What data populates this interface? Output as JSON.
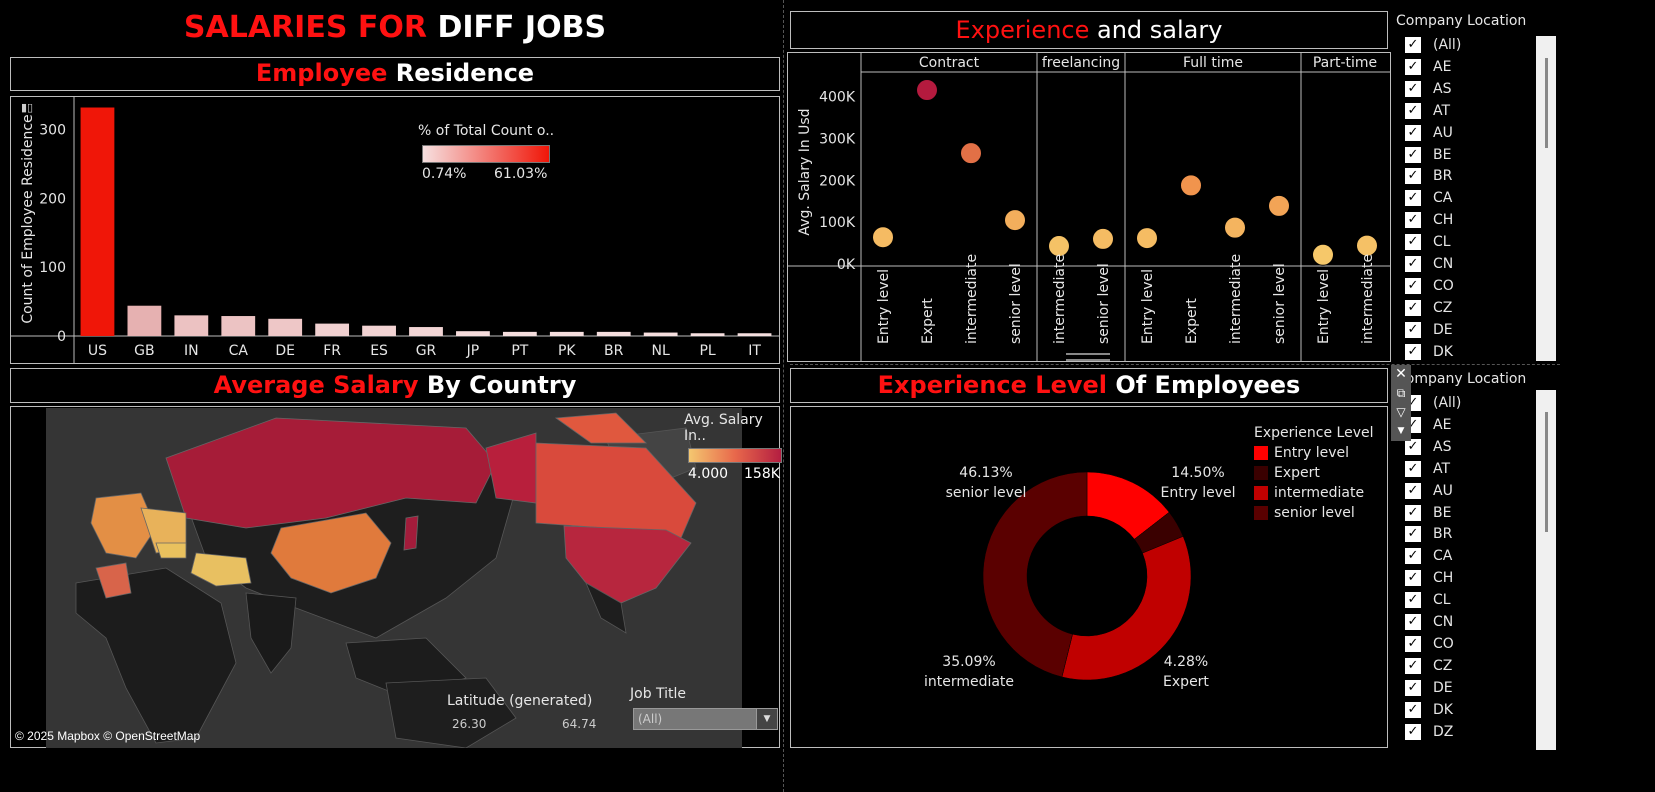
{
  "dashboard": {
    "title_red": "SALARIES FOR",
    "title_white": "DIFF JOBS"
  },
  "residence": {
    "title_red": "Employee",
    "title_white": "Residence",
    "legend_title": "% of Total Count o..",
    "legend_min": "0.74%",
    "legend_max": "61.03%",
    "colors": {
      "low": "#f6e0e0",
      "high": "#f01608"
    }
  },
  "experience_salary": {
    "title_red": "Experience",
    "title_white": "and salary",
    "groups": [
      {
        "label": "Contract",
        "levels": [
          "Entry level",
          "Expert",
          "intermediate",
          "senior level"
        ]
      },
      {
        "label": "freelancing",
        "levels": [
          "intermediate",
          "senior level"
        ]
      },
      {
        "label": "Full time",
        "levels": [
          "Entry level",
          "Expert",
          "intermediate",
          "senior level"
        ]
      },
      {
        "label": "Part-time",
        "levels": [
          "Entry level",
          "intermediate"
        ]
      }
    ],
    "yaxis_label": "Avg. Salary In Usd",
    "yticks": [
      "400K",
      "300K",
      "200K",
      "100K",
      "0K"
    ]
  },
  "map": {
    "title_red": "Average Salary",
    "title_white": "By Country",
    "legend_title": "Avg. Salary In..",
    "legend_min": "4.000",
    "legend_max": "158K",
    "latitude_title": "Latitude (generated)",
    "lat_min": "26.30",
    "lat_max": "64.74",
    "attribution": "© 2025 Mapbox © OpenStreetMap"
  },
  "job_filter": {
    "label": "Job Title",
    "value": "(All)"
  },
  "experience_level": {
    "title_red": "Experience Level",
    "title_white": "Of Employees",
    "legend_title": "Experience Level",
    "legend": [
      {
        "label": "Entry level",
        "color": "#ff0000"
      },
      {
        "label": "Expert",
        "color": "#3a0000"
      },
      {
        "label": "intermediate",
        "color": "#c00000"
      },
      {
        "label": "senior level",
        "color": "#5a0000"
      }
    ],
    "labels": {
      "senior_pct": "46.13%",
      "senior_name": "senior level",
      "entry_pct": "14.50%",
      "entry_name": "Entry level",
      "inter_pct": "35.09%",
      "inter_name": "intermediate",
      "expert_pct": "4.28%",
      "expert_name": "Expert"
    }
  },
  "company_filter_top": {
    "title": "Company Location",
    "items": [
      "(All)",
      "AE",
      "AS",
      "AT",
      "AU",
      "BE",
      "BR",
      "CA",
      "CH",
      "CL",
      "CN",
      "CO",
      "CZ",
      "DE",
      "DK"
    ]
  },
  "company_filter_bottom": {
    "title": "Company Location",
    "items": [
      "(All)",
      "AE",
      "AS",
      "AT",
      "AU",
      "BE",
      "BR",
      "CA",
      "CH",
      "CL",
      "CN",
      "CO",
      "CZ",
      "DE",
      "DK",
      "DZ"
    ]
  },
  "chart_data": [
    {
      "type": "bar",
      "title": "Employee Residence",
      "ylabel": "Count of Employee Residence",
      "ylim": [
        0,
        340
      ],
      "yticks": [
        0,
        100,
        200,
        300
      ],
      "categories": [
        "US",
        "GB",
        "IN",
        "CA",
        "DE",
        "FR",
        "ES",
        "GR",
        "JP",
        "PT",
        "PK",
        "BR",
        "NL",
        "PL",
        "IT"
      ],
      "values": [
        332,
        44,
        30,
        29,
        25,
        18,
        15,
        13,
        7,
        6,
        6,
        6,
        5,
        4,
        4
      ]
    },
    {
      "type": "scatter",
      "title": "Experience and salary",
      "ylabel": "Avg. Salary In Usd",
      "ylim": [
        0,
        440000
      ],
      "series": [
        {
          "group": "Contract",
          "x": [
            "Entry level",
            "Expert",
            "intermediate",
            "senior level"
          ],
          "y": [
            64000,
            416000,
            265000,
            105000
          ]
        },
        {
          "group": "freelancing",
          "x": [
            "intermediate",
            "senior level"
          ],
          "y": [
            43000,
            60000
          ]
        },
        {
          "group": "Full time",
          "x": [
            "Entry level",
            "Expert",
            "intermediate",
            "senior level"
          ],
          "y": [
            62000,
            188000,
            87000,
            139000
          ]
        },
        {
          "group": "Part-time",
          "x": [
            "Entry level",
            "intermediate"
          ],
          "y": [
            22000,
            44000
          ]
        }
      ]
    },
    {
      "type": "pie",
      "title": "Experience Level Of Employees",
      "categories": [
        "Entry level",
        "Expert",
        "intermediate",
        "senior level"
      ],
      "values": [
        14.5,
        4.28,
        35.09,
        46.13
      ]
    }
  ]
}
